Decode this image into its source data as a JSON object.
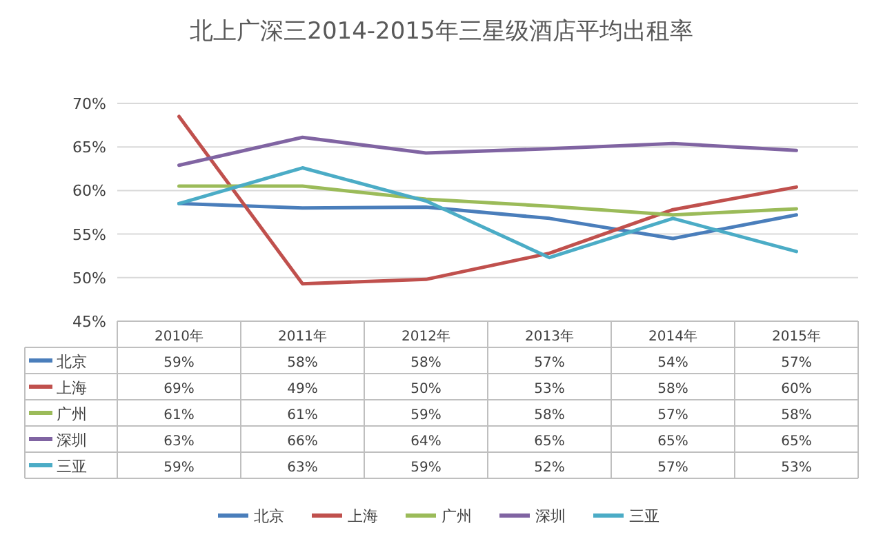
{
  "chart_data": {
    "type": "line",
    "title": "北上广深三2014-2015年三星级酒店平均出租率",
    "categories": [
      "2010年",
      "2011年",
      "2012年",
      "2013年",
      "2014年",
      "2015年"
    ],
    "series": [
      {
        "name": "北京",
        "color": "#4a7ebb",
        "values": [
          58.5,
          58,
          58.1,
          56.8,
          54.5,
          57.2
        ],
        "value_labels": [
          "59%",
          "58%",
          "58%",
          "57%",
          "54%",
          "57%"
        ]
      },
      {
        "name": "上海",
        "color": "#c0504d",
        "values": [
          68.5,
          49.3,
          49.8,
          52.8,
          57.8,
          60.4
        ],
        "value_labels": [
          "69%",
          "49%",
          "50%",
          "53%",
          "58%",
          "60%"
        ]
      },
      {
        "name": "广州",
        "color": "#9bbb59",
        "values": [
          60.5,
          60.5,
          59,
          58.2,
          57.2,
          57.9
        ],
        "value_labels": [
          "61%",
          "61%",
          "59%",
          "58%",
          "57%",
          "58%"
        ]
      },
      {
        "name": "深圳",
        "color": "#8064a2",
        "values": [
          62.9,
          66.1,
          64.3,
          64.8,
          65.4,
          64.6
        ],
        "value_labels": [
          "63%",
          "66%",
          "64%",
          "65%",
          "65%",
          "65%"
        ]
      },
      {
        "name": "三亚",
        "color": "#4bacc6",
        "values": [
          58.5,
          62.6,
          58.8,
          52.3,
          56.8,
          53
        ],
        "value_labels": [
          "59%",
          "63%",
          "59%",
          "52%",
          "57%",
          "53%"
        ]
      }
    ],
    "ylim": [
      45,
      70
    ],
    "yticks": [
      {
        "value": 45,
        "label": "45%"
      },
      {
        "value": 50,
        "label": "50%"
      },
      {
        "value": 55,
        "label": "55%"
      },
      {
        "value": 60,
        "label": "60%"
      },
      {
        "value": 65,
        "label": "65%"
      },
      {
        "value": 70,
        "label": "70%"
      }
    ],
    "grid": "y",
    "legend": "bottom",
    "marker": "none",
    "line_style": "solid"
  }
}
